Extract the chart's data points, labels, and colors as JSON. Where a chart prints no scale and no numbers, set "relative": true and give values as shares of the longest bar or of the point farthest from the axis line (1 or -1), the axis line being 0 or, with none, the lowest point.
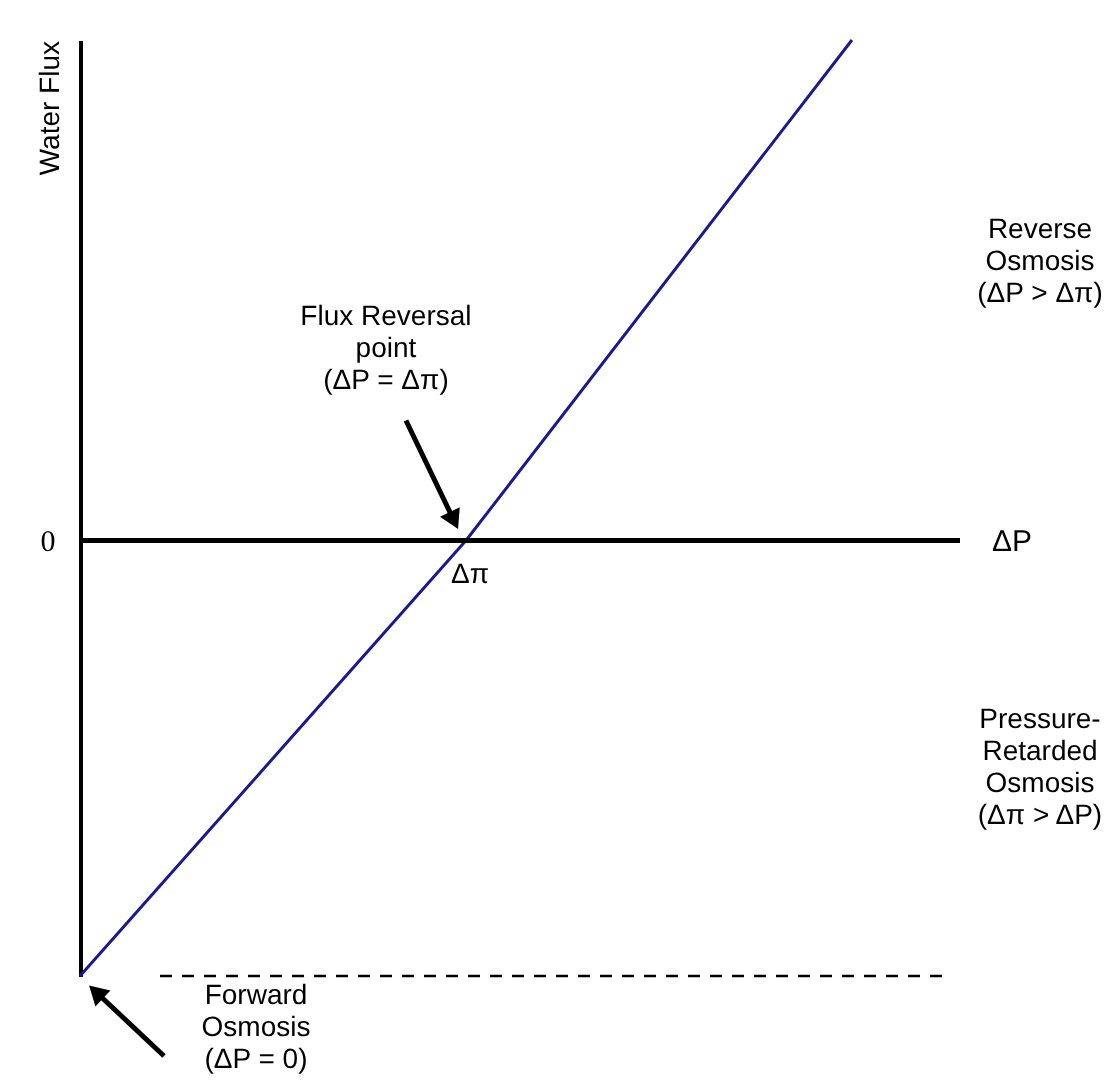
{
  "chart_data": {
    "type": "line",
    "relative": true,
    "xlabel": "ΔP",
    "ylabel": "Water Flux",
    "categories": [
      null,
      null,
      null
    ],
    "values": [
      -0.87,
      0,
      1
    ],
    "color": "#1a1a8c",
    "line_style": "solid",
    "ref_lines": [
      {
        "axis": "y",
        "value": 0,
        "label": "0",
        "color": "#000000",
        "line_style": "solid"
      },
      {
        "axis": "y",
        "value": -0.87,
        "color": "#000000",
        "line_style": "dashed"
      }
    ],
    "annotations": [
      "Flux Reversal\npoint\n(ΔP = Δπ)",
      {
        "text": "Δπ",
        "y": 0
      },
      "Reverse\nOsmosis\n(ΔP > Δπ)",
      "Pressure-\nRetarded\nOsmosis\n(Δπ > ΔP)",
      {
        "text": "Forward\nOsmosis\n(ΔP = 0)",
        "y": -0.87
      }
    ]
  }
}
